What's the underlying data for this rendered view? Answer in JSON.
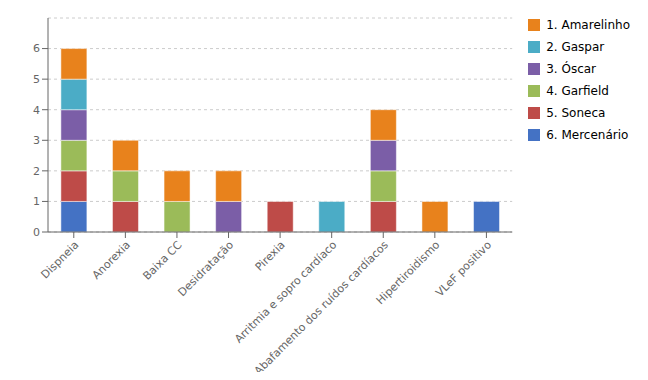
{
  "chart_data": {
    "type": "bar",
    "stacked": true,
    "categories": [
      "Dispneia",
      "Anorexia",
      "Baixa CC",
      "Desidratação",
      "Pirexia",
      "Arritmia e sopro cardíaco",
      "Abafamento dos ruídos cardíacos",
      "Hipertiroidismo",
      "VLeF positivo"
    ],
    "series": [
      {
        "name": "6. Mercenário",
        "color": "#4472C4",
        "values": [
          1,
          0,
          0,
          0,
          0,
          0,
          0,
          0,
          1
        ]
      },
      {
        "name": "5. Soneca",
        "color": "#BE4B48",
        "values": [
          1,
          1,
          0,
          0,
          1,
          0,
          1,
          0,
          0
        ]
      },
      {
        "name": "4. Garfield",
        "color": "#9BBB59",
        "values": [
          1,
          1,
          1,
          0,
          0,
          0,
          1,
          0,
          0
        ]
      },
      {
        "name": "3. Óscar",
        "color": "#7B5EA7",
        "values": [
          1,
          0,
          0,
          1,
          0,
          0,
          1,
          0,
          0
        ]
      },
      {
        "name": "2. Gaspar",
        "color": "#4BACC6",
        "values": [
          1,
          0,
          0,
          0,
          0,
          1,
          0,
          0,
          0
        ]
      },
      {
        "name": "1. Amarelinho",
        "color": "#E8821C",
        "values": [
          1,
          1,
          1,
          1,
          0,
          0,
          1,
          1,
          0
        ]
      }
    ],
    "ylim": [
      0,
      7
    ],
    "yticks": [
      0,
      1,
      2,
      3,
      4,
      5,
      6
    ],
    "grid": true,
    "legend": "right"
  }
}
